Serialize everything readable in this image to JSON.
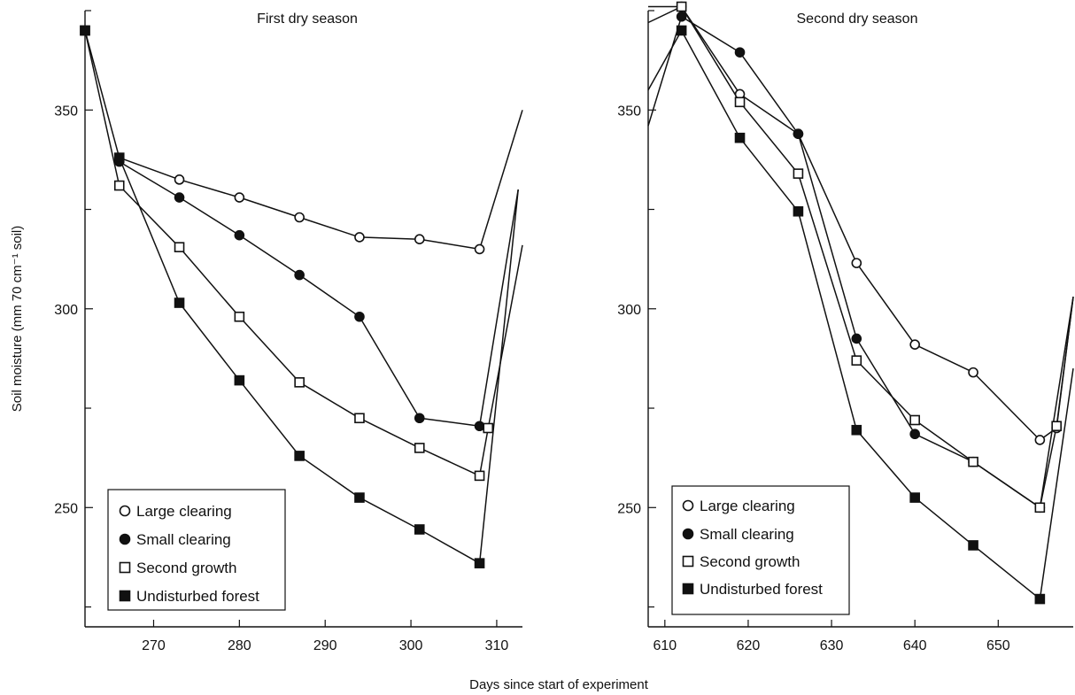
{
  "figure": {
    "xlabel": "Days since start of experiment",
    "ylabel": "Soil moisture (mm 70 cm⁻¹ soil)"
  },
  "legend_labels": [
    "Large clearing",
    "Small clearing",
    "Second growth",
    "Undisturbed forest"
  ],
  "chart_data": [
    {
      "type": "line",
      "title": "First dry season",
      "xlim": [
        262,
        313
      ],
      "ylim": [
        220,
        375
      ],
      "xticks": [
        270,
        280,
        290,
        300,
        310
      ],
      "yticks": [
        250,
        300,
        350
      ],
      "ytick_labels": [
        "250",
        "300",
        "350"
      ],
      "legend_position": "bottom-left",
      "series": [
        {
          "name": "Large clearing",
          "marker": "open-circle",
          "x": [
            266,
            273,
            280,
            287,
            294,
            301,
            308
          ],
          "y": [
            338,
            332.5,
            328,
            323,
            318,
            317.5,
            315
          ],
          "tail": [
            [
              308,
              315
            ],
            [
              313,
              350
            ]
          ]
        },
        {
          "name": "Small clearing",
          "marker": "filled-circle",
          "x": [
            266,
            273,
            280,
            287,
            294,
            301,
            308
          ],
          "y": [
            337,
            328,
            318.5,
            308.5,
            298,
            272.5,
            270.5
          ],
          "tail": [
            [
              308,
              270.5
            ],
            [
              312.5,
              330
            ]
          ]
        },
        {
          "name": "Second growth",
          "marker": "open-square",
          "x": [
            262,
            266,
            273,
            280,
            287,
            294,
            301,
            308,
            309
          ],
          "y": [
            370,
            331,
            315.5,
            298,
            281.5,
            272.5,
            265,
            258,
            270
          ],
          "tail": [
            [
              309,
              270
            ],
            [
              313,
              316
            ]
          ]
        },
        {
          "name": "Undisturbed forest",
          "marker": "filled-square",
          "x": [
            262,
            266,
            273,
            280,
            287,
            294,
            301,
            308
          ],
          "y": [
            370,
            338,
            301.5,
            282,
            263,
            252.5,
            244.5,
            236
          ],
          "tail": [
            [
              308,
              236
            ],
            [
              312.5,
              330
            ]
          ]
        }
      ]
    },
    {
      "type": "line",
      "title": "Second dry season",
      "xlim": [
        608,
        659
      ],
      "ylim": [
        220,
        375
      ],
      "xticks": [
        610,
        620,
        630,
        640,
        650
      ],
      "yticks": [
        250,
        300,
        350
      ],
      "ytick_labels": [
        "250",
        "300",
        "350"
      ],
      "legend_position": "bottom-left",
      "series": [
        {
          "name": "Large clearing",
          "marker": "open-circle",
          "x": [
            612,
            619,
            626,
            633,
            640,
            647,
            655,
            657
          ],
          "y": [
            376,
            354,
            344,
            311.5,
            291,
            284,
            267,
            270
          ],
          "lead": [
            [
              608,
              376
            ],
            [
              612,
              376
            ]
          ],
          "tail": [
            [
              657,
              270
            ],
            [
              659,
              303
            ]
          ]
        },
        {
          "name": "Small clearing",
          "marker": "filled-circle",
          "x": [
            612,
            619,
            626,
            633,
            640,
            647,
            655
          ],
          "y": [
            373.5,
            364.5,
            344,
            292.5,
            268.5,
            261.5,
            250
          ],
          "lead": [
            [
              608,
              346
            ],
            [
              612,
              373.5
            ]
          ],
          "tail": [
            [
              655,
              250
            ],
            [
              659,
              303
            ]
          ]
        },
        {
          "name": "Second growth",
          "marker": "open-square",
          "x": [
            612,
            619,
            626,
            633,
            640,
            647,
            655,
            657
          ],
          "y": [
            376,
            352,
            334,
            287,
            272,
            261.5,
            250,
            270.5
          ],
          "lead": [
            [
              608,
              372
            ],
            [
              612,
              376
            ]
          ],
          "tail": [
            [
              657,
              270.5
            ],
            [
              659,
              303
            ]
          ]
        },
        {
          "name": "Undisturbed forest",
          "marker": "filled-square",
          "x": [
            612,
            619,
            626,
            633,
            640,
            647,
            655
          ],
          "y": [
            370,
            343,
            324.5,
            269.5,
            252.5,
            240.5,
            227
          ],
          "lead": [
            [
              608,
              355
            ],
            [
              612,
              370
            ]
          ],
          "tail": [
            [
              655,
              227
            ],
            [
              659,
              285
            ]
          ]
        }
      ]
    }
  ]
}
